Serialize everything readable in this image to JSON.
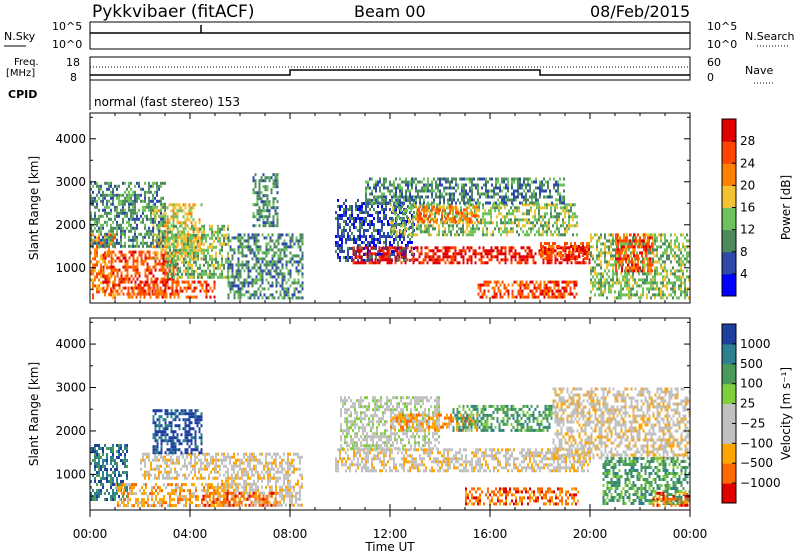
{
  "header": {
    "title": "Pykkvibaer (fitACF)",
    "beam": "Beam 00",
    "date": "08/Feb/2015"
  },
  "top_panels": {
    "nsky_label": "N.Sky",
    "nsky_ticks": [
      "10^5",
      "10^0"
    ],
    "nsearch_label": "N.Search",
    "nsearch_ticks": [
      "10^5",
      "10^0"
    ],
    "freq_label": "Freq.",
    "freq_unit": "[MHz]",
    "freq_ticks": [
      "18",
      "8"
    ],
    "nave_label": "Nave",
    "nave_ticks": [
      "60",
      "0"
    ],
    "cpid_label": "CPID",
    "cpid_text": "normal (fast stereo) 153"
  },
  "time_axis": {
    "label": "Time UT",
    "ticks": [
      "00:00",
      "04:00",
      "08:00",
      "12:00",
      "16:00",
      "20:00",
      "00:00"
    ]
  },
  "colors": {
    "power": [
      "#0000ff",
      "#2e4aa8",
      "#4d8b5f",
      "#6dc25b",
      "#f2c233",
      "#ff7f00",
      "#ff4500",
      "#e00000"
    ],
    "velocity": [
      "#e00000",
      "#ff6a00",
      "#ffa500",
      "#c0c0c0",
      "#c0c0c0",
      "#7fcf3f",
      "#4a9a5a",
      "#2e7f8f",
      "#1f3f9f"
    ]
  },
  "chart_data": [
    {
      "type": "heatmap",
      "panel": "power",
      "ylabel": "Slant Range [km]",
      "xlabel": "Time UT",
      "ylim": [
        180,
        4600
      ],
      "xlim": [
        0,
        24
      ],
      "yticks": [
        1000,
        2000,
        3000,
        4000
      ],
      "colorbar_label": "Power [dB]",
      "colorbar_ticks": [
        "4",
        "8",
        "12",
        "16",
        "20",
        "24",
        "28"
      ],
      "regions": [
        {
          "t0": 0.0,
          "t1": 1.0,
          "r0": 300,
          "r1": 1800,
          "level": 5
        },
        {
          "t0": 0.5,
          "t1": 3.5,
          "r0": 400,
          "r1": 1400,
          "level": 6
        },
        {
          "t0": 1.5,
          "t1": 5.0,
          "r0": 300,
          "r1": 700,
          "level": 6
        },
        {
          "t0": 2.5,
          "t1": 4.5,
          "r0": 1200,
          "r1": 2500,
          "level": 4
        },
        {
          "t0": 3.0,
          "t1": 5.5,
          "r0": 800,
          "r1": 2000,
          "level": 3
        },
        {
          "t0": 0.0,
          "t1": 3.0,
          "r0": 1500,
          "r1": 3000,
          "level": 2
        },
        {
          "t0": 5.5,
          "t1": 8.5,
          "r0": 300,
          "r1": 1800,
          "level": 2
        },
        {
          "t0": 6.5,
          "t1": 7.5,
          "r0": 2000,
          "r1": 3200,
          "level": 2
        },
        {
          "t0": 9.8,
          "t1": 13.0,
          "r0": 1200,
          "r1": 2600,
          "level": 1
        },
        {
          "t0": 10.5,
          "t1": 20.0,
          "r0": 1100,
          "r1": 1500,
          "level": 7
        },
        {
          "t0": 12.0,
          "t1": 19.5,
          "r0": 1800,
          "r1": 2500,
          "level": 3
        },
        {
          "t0": 11.0,
          "t1": 19.0,
          "r0": 2500,
          "r1": 3100,
          "level": 2
        },
        {
          "t0": 13.0,
          "t1": 15.5,
          "r0": 2100,
          "r1": 2450,
          "level": 5
        },
        {
          "t0": 15.5,
          "t1": 19.5,
          "r0": 300,
          "r1": 700,
          "level": 6
        },
        {
          "t0": 18.0,
          "t1": 20.0,
          "r0": 1200,
          "r1": 1600,
          "level": 6
        },
        {
          "t0": 20.0,
          "t1": 24.0,
          "r0": 300,
          "r1": 1800,
          "level": 3
        },
        {
          "t0": 21.0,
          "t1": 22.5,
          "r0": 900,
          "r1": 1800,
          "level": 6
        }
      ]
    },
    {
      "type": "heatmap",
      "panel": "velocity",
      "ylabel": "Slant Range [km]",
      "xlabel": "Time UT",
      "ylim": [
        180,
        4600
      ],
      "xlim": [
        0,
        24
      ],
      "yticks": [
        1000,
        2000,
        3000,
        4000
      ],
      "colorbar_label": "Velocity [m s⁻¹]",
      "colorbar_ticks": [
        "1000",
        "500",
        "100",
        "25",
        "−25",
        "−100",
        "−500",
        "−1000"
      ],
      "regions": [
        {
          "t0": 0.0,
          "t1": 1.5,
          "r0": 400,
          "r1": 1700,
          "level": 7
        },
        {
          "t0": 1.0,
          "t1": 5.5,
          "r0": 300,
          "r1": 800,
          "level": 2
        },
        {
          "t0": 2.0,
          "t1": 5.0,
          "r0": 900,
          "r1": 1500,
          "level": 3
        },
        {
          "t0": 2.5,
          "t1": 4.5,
          "r0": 1500,
          "r1": 2500,
          "level": 8
        },
        {
          "t0": 5.0,
          "t1": 8.5,
          "r0": 300,
          "r1": 1500,
          "level": 3
        },
        {
          "t0": 4.5,
          "t1": 7.5,
          "r0": 300,
          "r1": 600,
          "level": 1
        },
        {
          "t0": 9.8,
          "t1": 20.0,
          "r0": 1100,
          "r1": 1600,
          "level": 3
        },
        {
          "t0": 10.0,
          "t1": 14.0,
          "r0": 1600,
          "r1": 2800,
          "level": 4
        },
        {
          "t0": 12.0,
          "t1": 15.5,
          "r0": 2000,
          "r1": 2400,
          "level": 2
        },
        {
          "t0": 14.5,
          "t1": 18.5,
          "r0": 2000,
          "r1": 2600,
          "level": 6
        },
        {
          "t0": 15.0,
          "t1": 19.5,
          "r0": 300,
          "r1": 700,
          "level": 1
        },
        {
          "t0": 18.5,
          "t1": 24.0,
          "r0": 1400,
          "r1": 3000,
          "level": 3
        },
        {
          "t0": 20.5,
          "t1": 24.0,
          "r0": 300,
          "r1": 1400,
          "level": 6
        },
        {
          "t0": 22.5,
          "t1": 24.0,
          "r0": 300,
          "r1": 600,
          "level": 1
        }
      ]
    }
  ]
}
